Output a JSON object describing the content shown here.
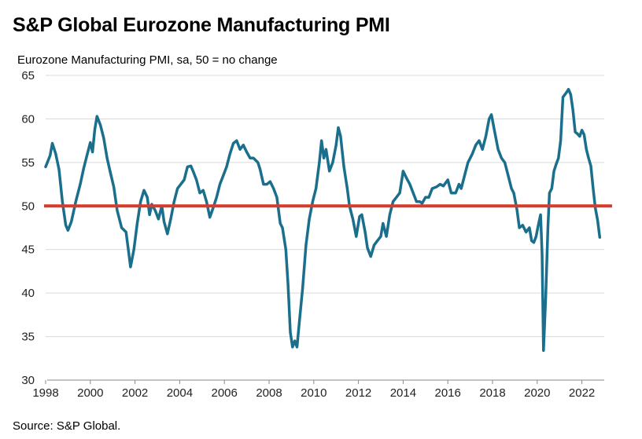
{
  "title": "S&P Global Eurozone Manufacturing PMI",
  "source": "Source: S&P Global.",
  "chart_data": {
    "type": "line",
    "subtitle": "Eurozone Manufacturing PMI, sa, 50 = no change",
    "xlabel": "",
    "ylabel": "",
    "xlim": [
      1998,
      2023
    ],
    "ylim": [
      30,
      65
    ],
    "x_ticks": [
      1998,
      2000,
      2002,
      2004,
      2006,
      2008,
      2010,
      2012,
      2014,
      2016,
      2018,
      2020,
      2022
    ],
    "y_ticks": [
      30,
      35,
      40,
      45,
      50,
      55,
      60,
      65
    ],
    "grid": "horizontal",
    "reference_line": {
      "value": 50,
      "color": "#d93a2b"
    },
    "series": [
      {
        "color": "#1a6f8c",
        "points": [
          [
            1998.0,
            54.5
          ],
          [
            1998.2,
            55.8
          ],
          [
            1998.3,
            57.2
          ],
          [
            1998.45,
            56.0
          ],
          [
            1998.6,
            54.2
          ],
          [
            1998.75,
            50.5
          ],
          [
            1998.9,
            47.8
          ],
          [
            1999.0,
            47.2
          ],
          [
            1999.15,
            48.2
          ],
          [
            1999.35,
            50.5
          ],
          [
            1999.55,
            52.5
          ],
          [
            1999.7,
            54.3
          ],
          [
            1999.85,
            55.8
          ],
          [
            2000.0,
            57.3
          ],
          [
            2000.1,
            56.2
          ],
          [
            2000.2,
            58.8
          ],
          [
            2000.3,
            60.3
          ],
          [
            2000.45,
            59.3
          ],
          [
            2000.6,
            57.8
          ],
          [
            2000.75,
            55.5
          ],
          [
            2000.9,
            53.8
          ],
          [
            2001.05,
            52.2
          ],
          [
            2001.2,
            49.5
          ],
          [
            2001.4,
            47.5
          ],
          [
            2001.6,
            47.0
          ],
          [
            2001.7,
            45.0
          ],
          [
            2001.8,
            43.0
          ],
          [
            2001.95,
            45.0
          ],
          [
            2002.1,
            48.0
          ],
          [
            2002.25,
            50.5
          ],
          [
            2002.4,
            51.8
          ],
          [
            2002.55,
            51.0
          ],
          [
            2002.65,
            49.0
          ],
          [
            2002.75,
            50.2
          ],
          [
            2002.9,
            49.5
          ],
          [
            2003.05,
            48.5
          ],
          [
            2003.2,
            50.0
          ],
          [
            2003.3,
            48.2
          ],
          [
            2003.45,
            46.8
          ],
          [
            2003.6,
            48.5
          ],
          [
            2003.75,
            50.5
          ],
          [
            2003.9,
            52.0
          ],
          [
            2004.05,
            52.5
          ],
          [
            2004.2,
            53.0
          ],
          [
            2004.35,
            54.5
          ],
          [
            2004.5,
            54.6
          ],
          [
            2004.6,
            54.0
          ],
          [
            2004.75,
            53.0
          ],
          [
            2004.9,
            51.5
          ],
          [
            2005.05,
            51.8
          ],
          [
            2005.2,
            50.5
          ],
          [
            2005.35,
            48.7
          ],
          [
            2005.5,
            49.8
          ],
          [
            2005.65,
            51.0
          ],
          [
            2005.8,
            52.5
          ],
          [
            2005.95,
            53.5
          ],
          [
            2006.1,
            54.5
          ],
          [
            2006.25,
            56.0
          ],
          [
            2006.4,
            57.2
          ],
          [
            2006.55,
            57.5
          ],
          [
            2006.7,
            56.5
          ],
          [
            2006.85,
            57.0
          ],
          [
            2007.0,
            56.2
          ],
          [
            2007.15,
            55.5
          ],
          [
            2007.3,
            55.5
          ],
          [
            2007.5,
            55.0
          ],
          [
            2007.6,
            54.2
          ],
          [
            2007.75,
            52.5
          ],
          [
            2007.9,
            52.5
          ],
          [
            2008.05,
            52.8
          ],
          [
            2008.2,
            52.0
          ],
          [
            2008.35,
            51.0
          ],
          [
            2008.5,
            48.0
          ],
          [
            2008.6,
            47.5
          ],
          [
            2008.75,
            45.0
          ],
          [
            2008.85,
            41.0
          ],
          [
            2008.95,
            35.5
          ],
          [
            2009.05,
            33.8
          ],
          [
            2009.15,
            34.5
          ],
          [
            2009.25,
            33.8
          ],
          [
            2009.35,
            36.5
          ],
          [
            2009.5,
            40.5
          ],
          [
            2009.65,
            45.5
          ],
          [
            2009.8,
            48.5
          ],
          [
            2009.95,
            50.5
          ],
          [
            2010.1,
            52.0
          ],
          [
            2010.25,
            55.0
          ],
          [
            2010.35,
            57.5
          ],
          [
            2010.45,
            55.5
          ],
          [
            2010.55,
            56.5
          ],
          [
            2010.7,
            54.0
          ],
          [
            2010.85,
            55.0
          ],
          [
            2011.0,
            57.0
          ],
          [
            2011.1,
            59.0
          ],
          [
            2011.2,
            58.0
          ],
          [
            2011.35,
            54.5
          ],
          [
            2011.5,
            52.0
          ],
          [
            2011.6,
            50.0
          ],
          [
            2011.75,
            48.5
          ],
          [
            2011.9,
            46.5
          ],
          [
            2012.05,
            48.8
          ],
          [
            2012.15,
            49.0
          ],
          [
            2012.3,
            47.0
          ],
          [
            2012.4,
            45.2
          ],
          [
            2012.55,
            44.2
          ],
          [
            2012.7,
            45.5
          ],
          [
            2012.85,
            46.0
          ],
          [
            2013.0,
            46.5
          ],
          [
            2013.1,
            48.0
          ],
          [
            2013.25,
            46.5
          ],
          [
            2013.4,
            49.0
          ],
          [
            2013.55,
            50.5
          ],
          [
            2013.7,
            51.0
          ],
          [
            2013.85,
            51.5
          ],
          [
            2014.0,
            54.0
          ],
          [
            2014.15,
            53.2
          ],
          [
            2014.3,
            52.5
          ],
          [
            2014.45,
            51.5
          ],
          [
            2014.6,
            50.5
          ],
          [
            2014.75,
            50.5
          ],
          [
            2014.85,
            50.3
          ],
          [
            2015.0,
            51.0
          ],
          [
            2015.15,
            51.0
          ],
          [
            2015.3,
            52.0
          ],
          [
            2015.5,
            52.2
          ],
          [
            2015.65,
            52.5
          ],
          [
            2015.8,
            52.3
          ],
          [
            2016.0,
            53.0
          ],
          [
            2016.15,
            51.5
          ],
          [
            2016.35,
            51.5
          ],
          [
            2016.5,
            52.5
          ],
          [
            2016.6,
            52.0
          ],
          [
            2016.75,
            53.5
          ],
          [
            2016.9,
            55.0
          ],
          [
            2017.1,
            56.0
          ],
          [
            2017.25,
            57.0
          ],
          [
            2017.4,
            57.5
          ],
          [
            2017.55,
            56.5
          ],
          [
            2017.7,
            58.0
          ],
          [
            2017.85,
            60.0
          ],
          [
            2017.95,
            60.5
          ],
          [
            2018.1,
            58.5
          ],
          [
            2018.25,
            56.5
          ],
          [
            2018.4,
            55.5
          ],
          [
            2018.55,
            55.0
          ],
          [
            2018.7,
            53.5
          ],
          [
            2018.85,
            52.0
          ],
          [
            2018.95,
            51.5
          ],
          [
            2019.1,
            49.5
          ],
          [
            2019.2,
            47.5
          ],
          [
            2019.35,
            47.8
          ],
          [
            2019.5,
            47.0
          ],
          [
            2019.65,
            47.5
          ],
          [
            2019.75,
            46.0
          ],
          [
            2019.85,
            45.8
          ],
          [
            2019.95,
            46.5
          ],
          [
            2020.05,
            47.8
          ],
          [
            2020.15,
            49.0
          ],
          [
            2020.22,
            44.5
          ],
          [
            2020.28,
            33.4
          ],
          [
            2020.38,
            39.5
          ],
          [
            2020.48,
            47.5
          ],
          [
            2020.55,
            51.5
          ],
          [
            2020.65,
            52.0
          ],
          [
            2020.75,
            54.0
          ],
          [
            2020.85,
            54.8
          ],
          [
            2020.95,
            55.5
          ],
          [
            2021.05,
            57.5
          ],
          [
            2021.15,
            62.5
          ],
          [
            2021.3,
            63.0
          ],
          [
            2021.4,
            63.4
          ],
          [
            2021.5,
            62.8
          ],
          [
            2021.6,
            61.0
          ],
          [
            2021.7,
            58.5
          ],
          [
            2021.8,
            58.3
          ],
          [
            2021.9,
            58.0
          ],
          [
            2022.0,
            58.7
          ],
          [
            2022.1,
            58.2
          ],
          [
            2022.2,
            56.5
          ],
          [
            2022.3,
            55.5
          ],
          [
            2022.4,
            54.6
          ],
          [
            2022.5,
            52.1
          ],
          [
            2022.6,
            49.8
          ],
          [
            2022.7,
            48.4
          ],
          [
            2022.8,
            46.4
          ]
        ]
      }
    ]
  }
}
